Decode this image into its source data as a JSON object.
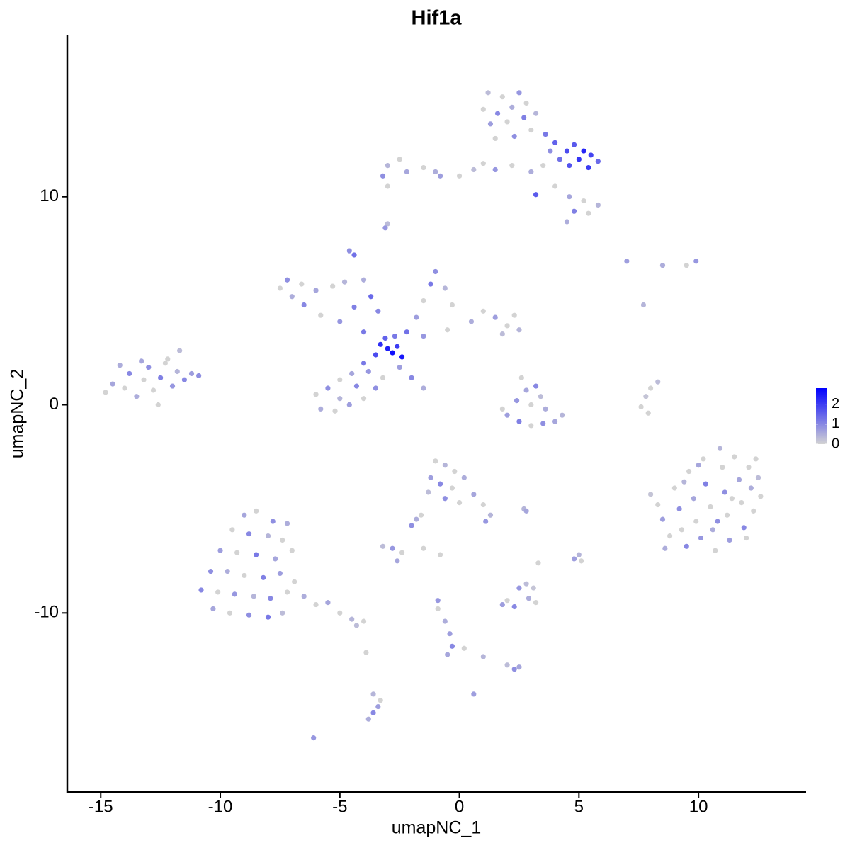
{
  "chart_data": {
    "type": "scatter",
    "title": "Hif1a",
    "x_label": "umapNC_1",
    "y_label": "umapNC_2",
    "xlim": [
      -16.4,
      14.5
    ],
    "ylim": [
      -18.6,
      17.75
    ],
    "xticks": [
      -15,
      -10,
      -5,
      0,
      5,
      10
    ],
    "yticks": [
      -10,
      0,
      10
    ],
    "color_scale": {
      "lim": [
        0,
        2.8
      ],
      "ticks": [
        0,
        1,
        2
      ],
      "low": "#d3d3d3",
      "high": "#0000ff"
    },
    "x": [
      1.2,
      1.8,
      2.5,
      1.0,
      1.6,
      2.2,
      2.8,
      1.3,
      2.0,
      2.7,
      3.2,
      1.5,
      2.3,
      3.0,
      3.6,
      4.0,
      4.5,
      5.0,
      5.5,
      5.8,
      4.8,
      5.2,
      4.2,
      3.8,
      4.6,
      5.4,
      3.5,
      3.0,
      2.2,
      1.5,
      1.0,
      3.2,
      4.0,
      4.6,
      5.2,
      5.8,
      4.8,
      4.5,
      5.4,
      -3.0,
      -2.5,
      -3.2,
      -2.2,
      -1.5,
      -0.8,
      0,
      -3.0,
      -1.0,
      0.6,
      -3.0,
      -3.1,
      -3.0,
      -2.8,
      -3.3,
      -2.6,
      -3.5,
      -2.4,
      -3.1,
      -2.7,
      -4.0,
      -5.0,
      -5.8,
      -6.5,
      -7.0,
      -7.5,
      -7.2,
      -6.6,
      -6.0,
      -5.3,
      -4.8,
      -4.4,
      -4.6,
      -4.4,
      -4.0,
      -3.7,
      -3.4,
      -2.2,
      -1.8,
      -1.5,
      -1.2,
      -1.0,
      -0.6,
      -0.3,
      -1.5,
      -0.5,
      0.5,
      1.0,
      1.5,
      2.0,
      2.5,
      2.3,
      1.8,
      -2.5,
      -2.0,
      -1.5,
      -4.0,
      -4.5,
      -5.0,
      -5.5,
      -6.0,
      -5.8,
      -5.2,
      -4.6,
      -4.0,
      -3.5,
      -3.2,
      -4.3,
      -5.0,
      -3.8,
      -14.8,
      -14.5,
      -14.0,
      -13.8,
      -13.5,
      -13.2,
      -13.0,
      -12.8,
      -12.5,
      -12.3,
      -12.0,
      -11.8,
      -11.5,
      -11.2,
      -10.9,
      -12.6,
      -13.3,
      -11.7,
      -14.2,
      -12.2,
      2.6,
      2.8,
      3.2,
      3.4,
      2.4,
      3.0,
      3.6,
      2.0,
      2.5,
      3.0,
      3.5,
      4.0,
      1.8,
      4.3,
      7.6,
      7.8,
      8.0,
      8.3,
      7.9,
      7.0,
      7.7,
      8.5,
      9.5,
      9.9,
      8.0,
      8.3,
      8.5,
      8.8,
      8.6,
      9.0,
      9.2,
      9.3,
      9.5,
      9.6,
      9.8,
      9.9,
      10.1,
      10.2,
      10.3,
      10.5,
      10.6,
      10.7,
      10.9,
      11.0,
      11.1,
      11.2,
      11.3,
      11.5,
      11.7,
      11.8,
      11.9,
      12.1,
      12.2,
      12.3,
      12.5,
      12.6,
      12.0,
      10.8,
      9.4,
      11.4,
      10.0,
      12.4,
      -1.0,
      -0.6,
      -0.2,
      -1.2,
      -0.8,
      -0.3,
      0.2,
      -1.3,
      -0.6,
      0,
      0.6,
      1.0,
      1.3,
      1.1,
      -1.8,
      -2.0,
      -1.6,
      -3.2,
      -2.8,
      -2.4,
      -2.6,
      -1.5,
      -0.8,
      2.7,
      2.8,
      5.0,
      5.1,
      4.8,
      3.3,
      2.5,
      2.8,
      2.0,
      2.3,
      2.9,
      1.8,
      3.2,
      3.1,
      -0.9,
      -0.9,
      -0.6,
      -0.4,
      -0.3,
      -0.5,
      0.2,
      1.0,
      2.0,
      2.3,
      2.5,
      -3.9,
      -3.6,
      -3.4,
      -3.6,
      -3.8,
      -3.3,
      0.6,
      -6.1,
      -9.0,
      -8.5,
      -7.8,
      -7.2,
      -9.5,
      -8.8,
      -8.0,
      -7.4,
      -10.0,
      -9.3,
      -8.5,
      -7.7,
      -7.0,
      -10.4,
      -9.7,
      -9.0,
      -8.2,
      -7.5,
      -6.9,
      -10.8,
      -10.1,
      -9.4,
      -8.6,
      -7.9,
      -7.2,
      -10.3,
      -9.6,
      -8.8,
      -8.0,
      -7.4,
      -6.5,
      -6.0,
      -5.5,
      -5.0,
      -4.5,
      -4.0,
      -4.3
    ],
    "y": [
      15.0,
      14.8,
      15.0,
      14.2,
      14.0,
      14.3,
      14.5,
      13.5,
      13.6,
      13.8,
      14.0,
      12.8,
      12.9,
      13.2,
      13.0,
      12.6,
      12.2,
      11.8,
      12.0,
      11.7,
      12.5,
      12.2,
      11.8,
      12.2,
      11.5,
      11.4,
      11.5,
      11.2,
      11.5,
      11.3,
      11.6,
      10.1,
      10.5,
      10.0,
      9.8,
      9.6,
      9.3,
      8.8,
      9.2,
      11.5,
      11.8,
      11.0,
      11.2,
      11.4,
      11.0,
      11.0,
      10.5,
      11.2,
      11.3,
      8.7,
      8.5,
      2.7,
      2.5,
      2.9,
      2.8,
      2.4,
      2.3,
      3.2,
      3.3,
      3.5,
      4.0,
      4.3,
      4.8,
      5.2,
      5.6,
      6.0,
      5.8,
      5.5,
      5.7,
      5.9,
      4.7,
      7.4,
      7.2,
      6.0,
      5.2,
      4.5,
      3.5,
      4.2,
      5.0,
      5.8,
      6.4,
      5.6,
      4.8,
      3.3,
      3.6,
      4.0,
      4.5,
      4.2,
      3.8,
      3.6,
      4.3,
      3.4,
      1.8,
      1.3,
      0.8,
      2.0,
      1.5,
      1.2,
      0.8,
      0.5,
      -0.2,
      -0.3,
      0.0,
      0.3,
      0.8,
      1.3,
      0.9,
      0.3,
      1.6,
      0.6,
      1.0,
      0.8,
      1.5,
      0.4,
      1.2,
      1.8,
      0.7,
      1.3,
      2.0,
      0.9,
      1.6,
      1.2,
      1.5,
      1.4,
      0.0,
      2.1,
      2.6,
      1.9,
      2.2,
      1.3,
      0.7,
      0.9,
      0.4,
      0.2,
      0.0,
      -0.2,
      -0.5,
      -0.8,
      -1.0,
      -0.9,
      -0.8,
      -0.2,
      -0.5,
      -0.1,
      0.4,
      0.8,
      1.1,
      -0.4,
      6.9,
      4.8,
      6.7,
      6.7,
      6.9,
      -4.3,
      -4.8,
      -5.5,
      -6.3,
      -6.9,
      -4.0,
      -5.0,
      -6.0,
      -6.8,
      -3.2,
      -4.5,
      -5.6,
      -6.4,
      -2.6,
      -3.8,
      -4.9,
      -6.0,
      -7.0,
      -2.1,
      -3.0,
      -4.2,
      -5.3,
      -6.5,
      -2.5,
      -3.6,
      -4.7,
      -5.9,
      -3.0,
      -4.0,
      -5.1,
      -3.5,
      -4.4,
      -6.4,
      -5.6,
      -3.7,
      -4.5,
      -2.9,
      -2.6,
      -2.7,
      -2.9,
      -3.2,
      -3.5,
      -3.8,
      -4.0,
      -3.5,
      -4.2,
      -4.5,
      -4.7,
      -4.3,
      -4.8,
      -5.3,
      -5.6,
      -5.5,
      -5.8,
      -5.3,
      -6.8,
      -6.9,
      -7.1,
      -7.5,
      -6.9,
      -7.2,
      -5.0,
      -5.1,
      -7.2,
      -7.5,
      -7.4,
      -7.6,
      -8.8,
      -8.6,
      -9.4,
      -9.7,
      -9.3,
      -9.6,
      -9.5,
      -8.8,
      -9.4,
      -9.8,
      -10.4,
      -11.0,
      -11.6,
      -12.0,
      -11.7,
      -12.1,
      -12.5,
      -12.7,
      -12.6,
      -11.9,
      -13.9,
      -14.5,
      -14.8,
      -15.1,
      -14.2,
      -13.9,
      -16.0,
      -5.3,
      -5.1,
      -5.6,
      -5.7,
      -6.0,
      -6.2,
      -6.3,
      -6.5,
      -7.0,
      -7.1,
      -7.2,
      -7.4,
      -7.0,
      -8.0,
      -8.0,
      -8.2,
      -8.3,
      -8.1,
      -8.5,
      -8.9,
      -9.0,
      -9.1,
      -9.2,
      -9.3,
      -9.0,
      -9.8,
      -10.0,
      -10.1,
      -10.2,
      -10.0,
      -9.2,
      -9.6,
      -9.5,
      -10.0,
      -10.3,
      -10.4,
      -10.6
    ],
    "values": [
      0.3,
      0,
      0.8,
      0,
      1.0,
      0.5,
      0,
      0.7,
      0,
      1.1,
      0.4,
      0,
      0.9,
      0,
      1.2,
      1.5,
      1.8,
      2.1,
      1.9,
      1.4,
      1.6,
      2.3,
      1.3,
      0.9,
      1.7,
      2.0,
      0,
      0.5,
      0,
      0.8,
      0,
      1.6,
      0,
      0.6,
      0,
      0.4,
      1.1,
      0.5,
      0,
      0.4,
      0,
      0.9,
      0.6,
      0,
      0.7,
      0,
      0,
      0.5,
      0.3,
      0.3,
      0.8,
      2.4,
      2.6,
      2.2,
      2.0,
      1.8,
      2.5,
      1.5,
      1.2,
      1.2,
      0.8,
      0,
      1.0,
      0.5,
      0,
      0.9,
      0,
      0.6,
      0,
      0.4,
      1.1,
      0.9,
      1.3,
      0.5,
      1.4,
      1.0,
      1.3,
      0.7,
      0,
      1.2,
      0.9,
      0.4,
      0,
      0.8,
      0,
      0.5,
      0,
      0.7,
      0,
      0.4,
      0,
      0.3,
      0.7,
      1.0,
      0.5,
      1.2,
      0.6,
      0,
      0.9,
      0,
      0.5,
      0,
      0.7,
      0,
      0.9,
      0,
      1.0,
      0.4,
      0.8,
      0,
      0.6,
      0,
      1.0,
      0.5,
      0,
      0.9,
      0,
      1.1,
      0,
      0.8,
      0.4,
      1.0,
      0.7,
      0.9,
      0,
      0.6,
      0.3,
      0.5,
      0,
      0,
      0.6,
      1.0,
      0.3,
      0.8,
      0,
      0.5,
      0.7,
      1.1,
      0,
      0.9,
      0.6,
      0,
      0.4,
      0,
      0.2,
      0,
      0.3,
      0,
      0.7,
      0.4,
      0.5,
      0,
      0.8,
      0.2,
      0,
      0.7,
      0,
      0.5,
      0,
      0.9,
      0,
      1.0,
      0,
      0.6,
      0,
      0.8,
      0,
      1.1,
      0,
      0.5,
      0,
      0.4,
      0,
      0.9,
      0,
      0.7,
      0,
      0.6,
      0,
      1.0,
      0,
      0.5,
      0,
      0.3,
      0,
      0,
      0.9,
      0.4,
      0,
      0.6,
      0,
      0,
      0.4,
      0,
      0.7,
      1.0,
      0,
      0.5,
      0.3,
      0.9,
      0,
      0.6,
      0,
      0.4,
      0.8,
      0.5,
      0.9,
      0,
      0.3,
      0.8,
      0,
      0.6,
      0,
      0,
      0.4,
      0.6,
      0.4,
      0,
      0.7,
      0,
      0.8,
      0.3,
      0,
      1.0,
      0.5,
      0.7,
      0,
      0.2,
      0.8,
      0,
      0.5,
      0.7,
      1.0,
      0.6,
      0,
      0.4,
      0.3,
      0.9,
      0.6,
      0,
      0.4,
      0.7,
      1.0,
      0.5,
      0,
      0.7,
      0.8,
      0.6,
      0,
      0.9,
      0.5,
      0,
      1.0,
      0.4,
      0,
      0.7,
      0,
      1.2,
      0.6,
      0,
      0.9,
      0.5,
      0,
      1.1,
      0.7,
      0,
      1.0,
      0,
      0.8,
      0.4,
      1.0,
      0,
      0.6,
      0,
      0.9,
      1.2,
      0.3,
      0.5,
      0,
      0.6,
      0,
      0.4,
      0,
      0.3
    ]
  }
}
